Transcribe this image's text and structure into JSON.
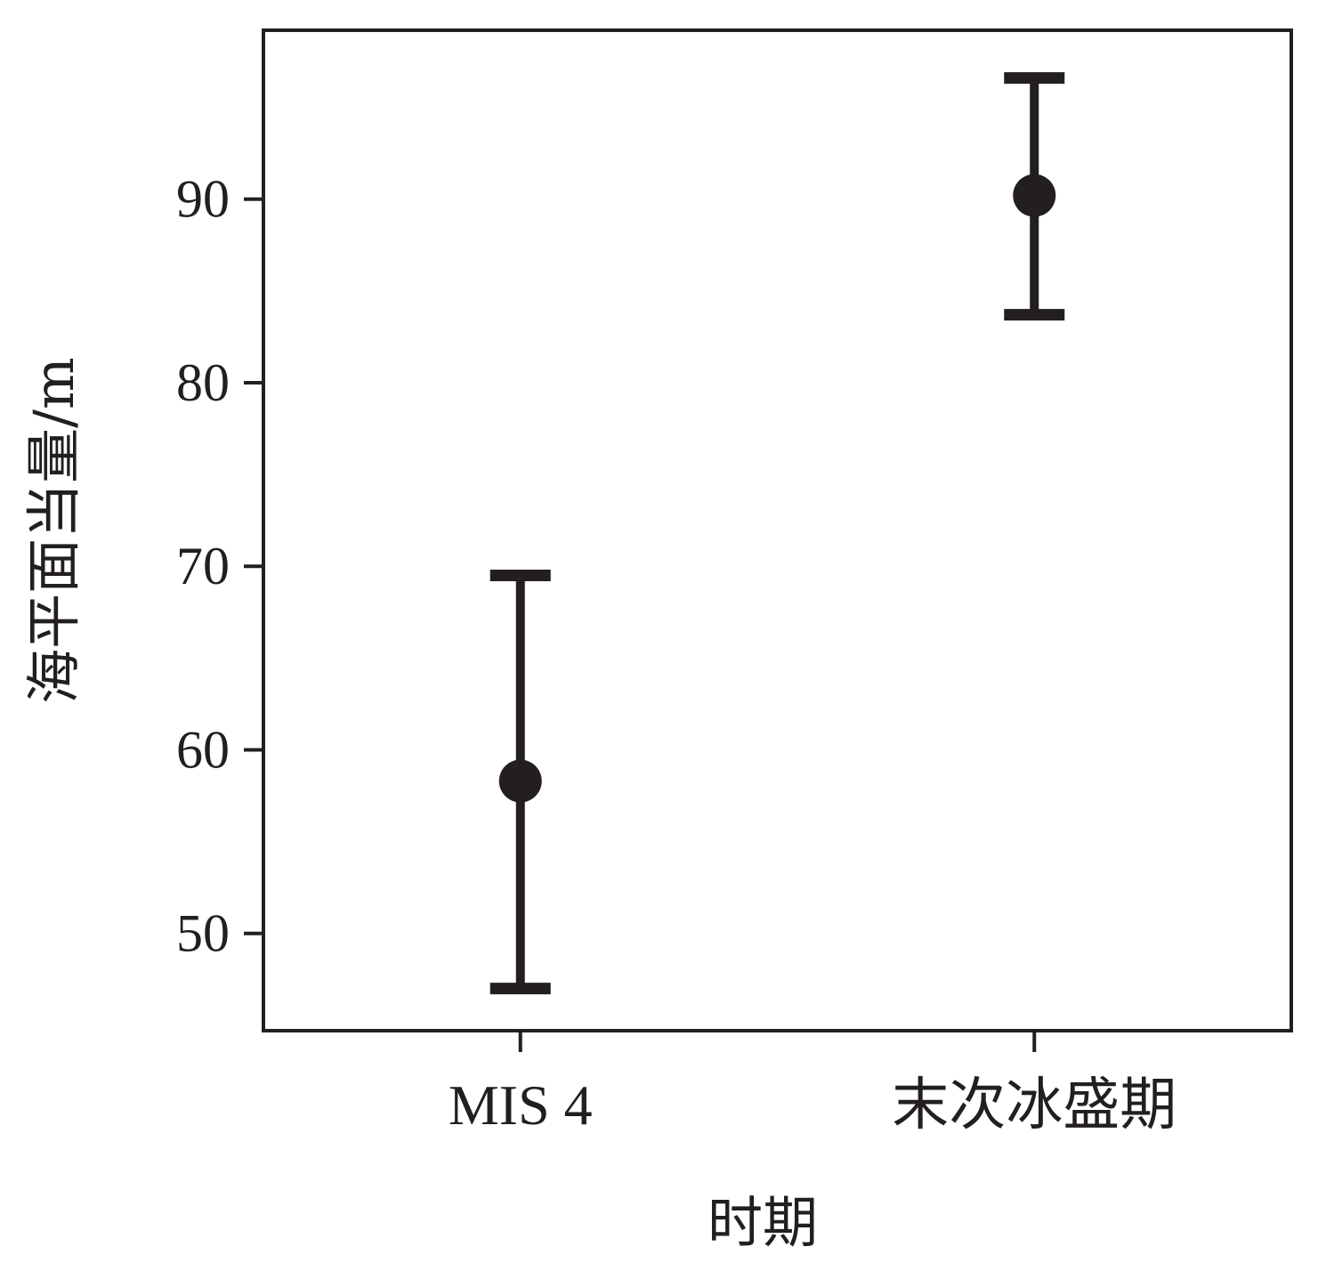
{
  "chart_data": {
    "type": "scatter",
    "title": "",
    "xlabel": "时期",
    "ylabel": "海平面当量/m",
    "categories": [
      "MIS 4",
      "末次冰盛期"
    ],
    "points": [
      {
        "category": "MIS 4",
        "value": 58.3,
        "lower": 47.0,
        "upper": 69.5
      },
      {
        "category": "末次冰盛期",
        "value": 90.2,
        "lower": 83.7,
        "upper": 96.6
      }
    ],
    "yticks": [
      50,
      60,
      70,
      80,
      90
    ],
    "ytick_labels": [
      "50",
      "60",
      "70",
      "80",
      "90"
    ],
    "ylim": [
      44.7,
      99.2
    ],
    "grid": false,
    "legend": "none",
    "colors": {
      "marker": "#231f20",
      "axis": "#231f20"
    }
  }
}
